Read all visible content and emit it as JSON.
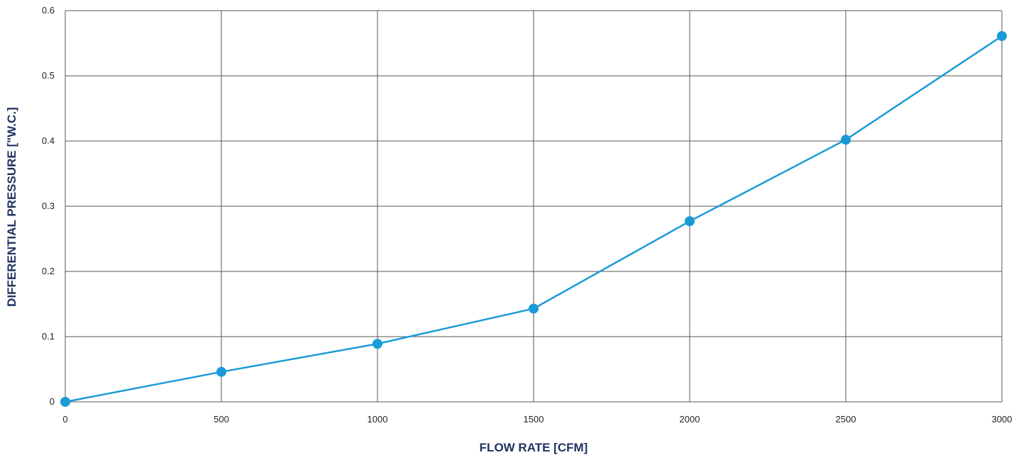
{
  "chart_data": {
    "type": "line",
    "title": "",
    "xlabel": "FLOW RATE [CFM]",
    "ylabel": "DIFFERENTIAL PRESSURE [\"W.C.]",
    "xlim": [
      0,
      3000
    ],
    "ylim": [
      0,
      0.6
    ],
    "x_ticks": [
      0,
      500,
      1000,
      1500,
      2000,
      2500,
      3000
    ],
    "x_tick_labels": [
      "0",
      "500",
      "1000",
      "1500",
      "2000",
      "2500",
      "3000"
    ],
    "y_ticks": [
      0,
      0.1,
      0.2,
      0.3,
      0.4,
      0.5,
      0.6
    ],
    "y_tick_labels": [
      "0",
      "0.1",
      "0.2",
      "0.3",
      "0.4",
      "0.5",
      "0.6"
    ],
    "grid": true,
    "legend": "none",
    "series": [
      {
        "x": [
          0,
          500,
          1000,
          1500,
          2000,
          2500,
          3000
        ],
        "y": [
          0.0,
          0.046,
          0.089,
          0.143,
          0.277,
          0.402,
          0.561
        ],
        "color": "#1a9bd7"
      }
    ],
    "colors": {
      "grid": "#555555",
      "axis_title": "#1f3360",
      "tick_label": "#222222"
    }
  }
}
